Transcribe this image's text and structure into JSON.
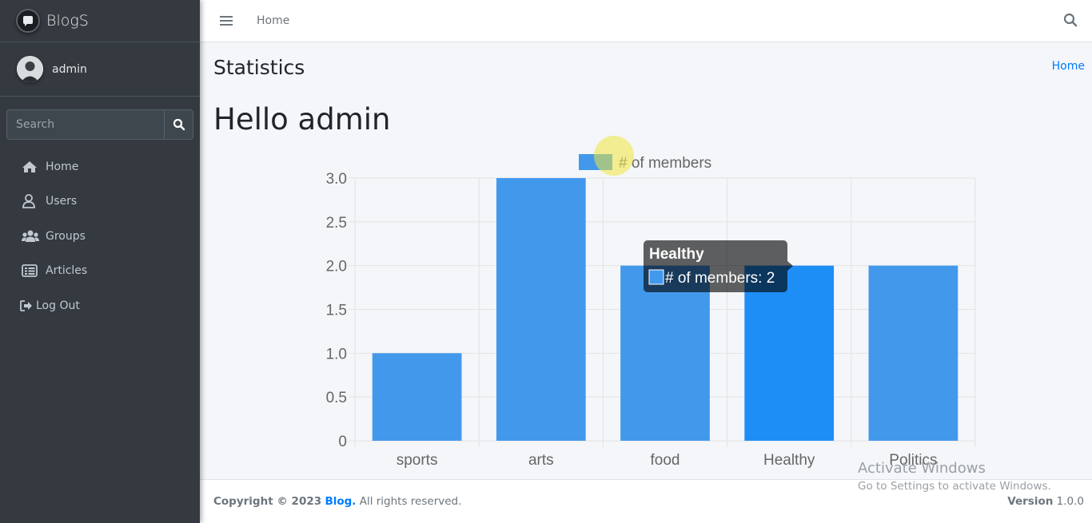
{
  "brand": {
    "name": "BlogS"
  },
  "user": {
    "name": "admin"
  },
  "sidebar": {
    "search_placeholder": "Search",
    "items": [
      {
        "label": "Home",
        "icon": "home-icon"
      },
      {
        "label": "Users",
        "icon": "user-icon"
      },
      {
        "label": "Groups",
        "icon": "users-group-icon"
      },
      {
        "label": "Articles",
        "icon": "list-icon"
      },
      {
        "label": "Log Out",
        "icon": "sign-out-icon"
      }
    ]
  },
  "navbar": {
    "home_link": "Home"
  },
  "content": {
    "title": "Statistics",
    "breadcrumb": "Home",
    "greeting": "Hello admin"
  },
  "chart_data": {
    "type": "bar",
    "categories": [
      "sports",
      "arts",
      "food",
      "Healthy",
      "Politics"
    ],
    "series": [
      {
        "name": "# of members",
        "values": [
          1,
          3,
          2,
          2,
          2
        ]
      }
    ],
    "ylim": [
      0,
      3.0
    ],
    "yticks": [
      "0",
      "0.5",
      "1.0",
      "1.5",
      "2.0",
      "2.5",
      "3.0"
    ],
    "legend": "top-center",
    "grid": true,
    "colors": {
      "bar": "#4299ec",
      "bar_hover": "#1e8ef7"
    },
    "tooltip": {
      "title": "Healthy",
      "label": "# of members: 2"
    }
  },
  "footer": {
    "copyright": "Copyright © 2023",
    "link": "Blog.",
    "rights": "All rights reserved.",
    "version_label": "Version",
    "version": "1.0.0"
  },
  "overlay": {
    "activate_title": "Activate Windows",
    "activate_sub": "Go to Settings to activate Windows."
  },
  "colors": {
    "sidebar_bg": "#343a40",
    "accent": "#007bff"
  }
}
